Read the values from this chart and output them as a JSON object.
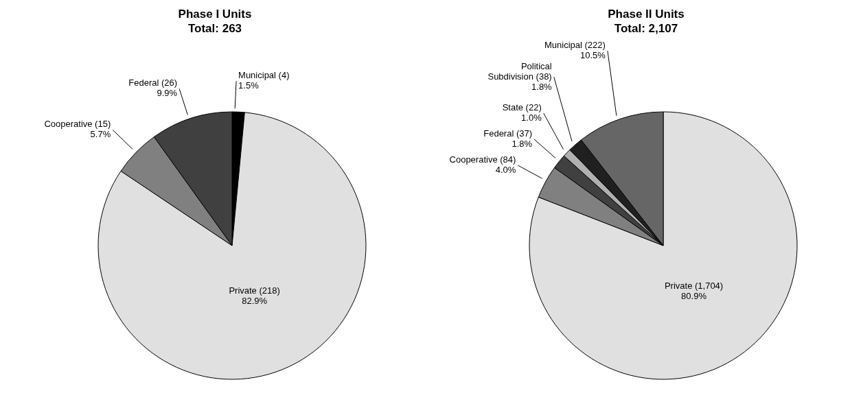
{
  "chart_data": [
    {
      "type": "pie",
      "title": "Phase I Units",
      "subtitle": "Total: 263",
      "categories": [
        "Municipal (4)",
        "Private (218)",
        "Cooperative (15)",
        "Federal (26)"
      ],
      "values": [
        1.5,
        82.9,
        5.7,
        9.9
      ],
      "colors": [
        "#000000",
        "#e0e0e0",
        "#808080",
        "#404040"
      ],
      "value_labels": [
        "1.5%",
        "82.9%",
        "5.7%",
        "9.9%"
      ],
      "legend": false
    },
    {
      "type": "pie",
      "title": "Phase II Units",
      "subtitle": "Total: 2,107",
      "categories": [
        "Private (1,704)",
        "Cooperative (84)",
        "Federal (37)",
        "State (22)",
        "Political Subdivision (38)",
        "Municipal (222)"
      ],
      "values": [
        80.9,
        4.0,
        1.8,
        1.0,
        1.8,
        10.5
      ],
      "colors": [
        "#e0e0e0",
        "#808080",
        "#404040",
        "#b0b0b0",
        "#202020",
        "#666666"
      ],
      "value_labels": [
        "80.9%",
        "4.0%",
        "1.8%",
        "1.0%",
        "1.8%",
        "10.5%"
      ],
      "legend": false
    }
  ]
}
